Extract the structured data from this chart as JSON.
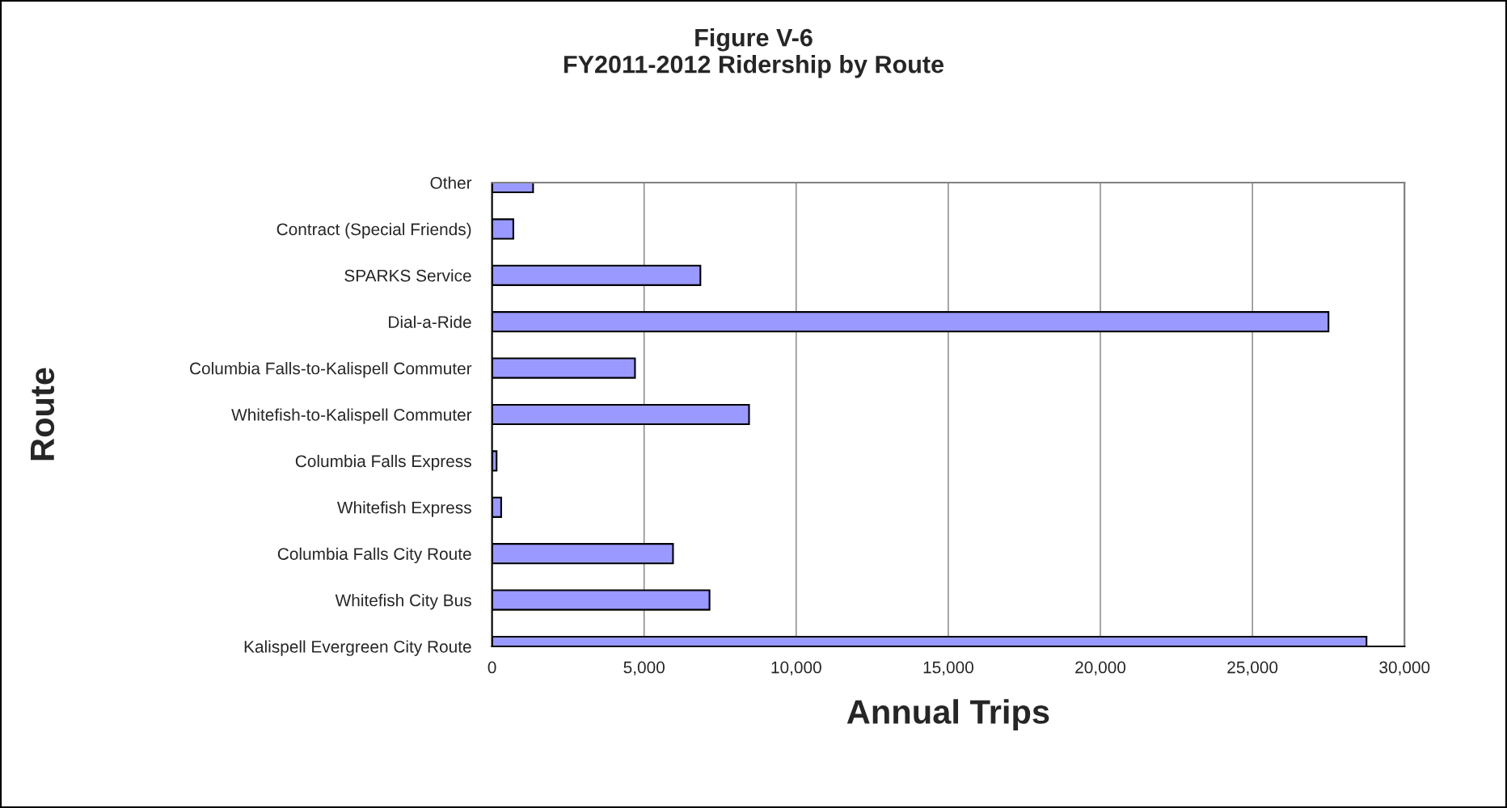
{
  "chart_data": {
    "type": "bar",
    "orientation": "horizontal",
    "title": "Figure V-6\nFY2011-2012 Ridership by Route",
    "xlabel": "Annual Trips",
    "ylabel": "Route",
    "categories": [
      "Other",
      "Contract (Special Friends)",
      "SPARKS Service",
      "Dial-a-Ride",
      "Columbia Falls-to-Kalispell Commuter",
      "Whitefish-to-Kalispell Commuter",
      "Columbia Falls Express",
      "Whitefish Express",
      "Columbia Falls City Route",
      "Whitefish City Bus",
      "Kalispell Evergreen City Route"
    ],
    "values": [
      1350,
      700,
      6850,
      27500,
      4700,
      8450,
      150,
      300,
      5950,
      7150,
      28750
    ],
    "color": "#9999ff",
    "xlim": [
      0,
      30000
    ],
    "xticks": [
      {
        "value": 0,
        "label": "0"
      },
      {
        "value": 5000,
        "label": "5,000"
      },
      {
        "value": 10000,
        "label": "10,000"
      },
      {
        "value": 15000,
        "label": "15,000"
      },
      {
        "value": 20000,
        "label": "20,000"
      },
      {
        "value": 25000,
        "label": "25,000"
      },
      {
        "value": 30000,
        "label": "30,000"
      }
    ],
    "grid": "x",
    "legend": false
  }
}
